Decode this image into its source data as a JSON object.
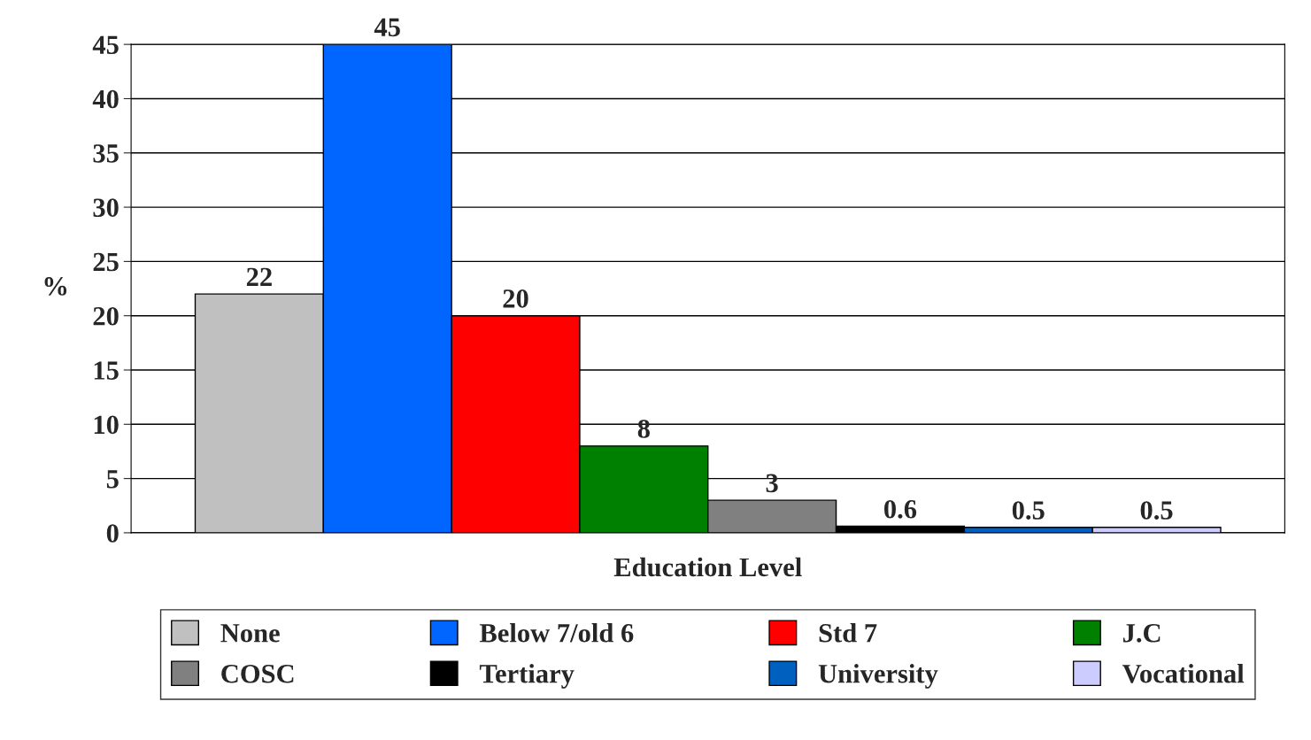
{
  "chart_data": {
    "type": "bar",
    "xlabel": "Education Level",
    "ylabel": "%",
    "categories": [
      null,
      null,
      null,
      null,
      null,
      null,
      null,
      null
    ],
    "series": [
      {
        "name": "None",
        "color": "#c0c0c0",
        "values": [
          22,
          null,
          null,
          null,
          null,
          null,
          null,
          null
        ]
      },
      {
        "name": "Below 7/old 6",
        "color": "#0066ff",
        "values": [
          null,
          45,
          null,
          null,
          null,
          null,
          null,
          null
        ]
      },
      {
        "name": "Std 7",
        "color": "#ff0000",
        "values": [
          null,
          null,
          20,
          null,
          null,
          null,
          null,
          null
        ]
      },
      {
        "name": "J.C",
        "color": "#008000",
        "values": [
          null,
          null,
          null,
          8,
          null,
          null,
          null,
          null
        ]
      },
      {
        "name": "COSC",
        "color": "#808080",
        "values": [
          null,
          null,
          null,
          null,
          3,
          null,
          null,
          null
        ]
      },
      {
        "name": "Tertiary",
        "color": "#000000",
        "values": [
          null,
          null,
          null,
          null,
          null,
          0.6,
          null,
          null
        ]
      },
      {
        "name": "University",
        "color": "#0060c0",
        "values": [
          null,
          null,
          null,
          null,
          null,
          null,
          0.5,
          null
        ]
      },
      {
        "name": "Vocational",
        "color": "#ccccff",
        "values": [
          null,
          null,
          null,
          null,
          null,
          null,
          null,
          0.5
        ]
      }
    ],
    "ylim": [
      0,
      45
    ],
    "yticks": [
      0,
      5,
      10,
      15,
      20,
      25,
      30,
      35,
      40,
      45
    ],
    "grid": "y",
    "legend": "bottom",
    "tick_labels": "y",
    "data_labels": true
  }
}
